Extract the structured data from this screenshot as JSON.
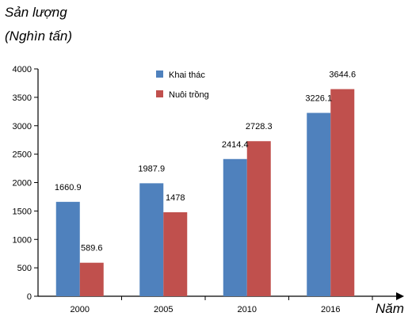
{
  "chart_data": {
    "type": "bar",
    "ylabel_line1": "Sản lượng",
    "ylabel_line2": "(Nghìn tấn)",
    "xlabel": "Năm",
    "categories": [
      "2000",
      "2005",
      "2010",
      "2016"
    ],
    "series": [
      {
        "name": "Khai thác",
        "color": "#4f81bd",
        "values": [
          1660.9,
          1987.9,
          2414.4,
          3226.1
        ]
      },
      {
        "name": "Nuôi trồng",
        "color": "#c0504d",
        "values": [
          589.6,
          1478,
          2728.3,
          3644.6
        ]
      }
    ],
    "data_labels": [
      [
        "1660.9",
        "1987.9",
        "2414.4",
        "3226.1"
      ],
      [
        "589.6",
        "1478",
        "2728.3",
        "3644.6"
      ]
    ],
    "ylim": [
      0,
      4000
    ],
    "yticks": [
      "0",
      "500",
      "1000",
      "1500",
      "2000",
      "2500",
      "3000",
      "3500",
      "4000"
    ],
    "grid": false,
    "legend_position": "top-center"
  }
}
